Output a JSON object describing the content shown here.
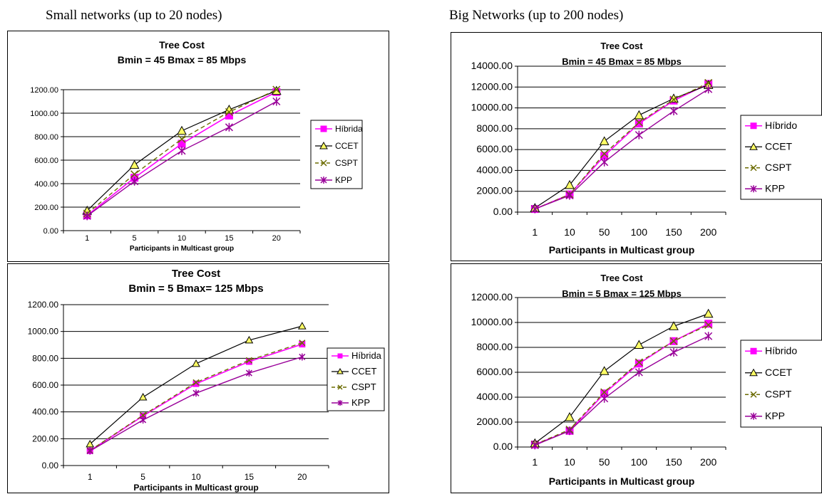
{
  "headings": {
    "left": "Small networks (up to 20 nodes)",
    "right": "Big Networks (up to 200 nodes)"
  },
  "colors": {
    "hibrida": "#ff00ff",
    "ccet": "#000000",
    "cspt": "#6b6b00",
    "kpp": "#990099",
    "ccet_marker_fill": "#ffff66"
  },
  "chart_data": [
    {
      "type": "line",
      "title": "Tree Cost",
      "subtitle": "Bmin = 45 Bmax = 85 Mbps",
      "xlabel": "Participants in Multicast group",
      "ylabel": "",
      "categories": [
        "1",
        "5",
        "10",
        "15",
        "20"
      ],
      "ylim": [
        0,
        1200
      ],
      "yticks": [
        "0.00",
        "200.00",
        "400.00",
        "600.00",
        "800.00",
        "1000.00",
        "1200.00"
      ],
      "grid": true,
      "legend": "right",
      "series": [
        {
          "name": "Híbrida",
          "values": [
            130,
            450,
            740,
            980,
            1180
          ]
        },
        {
          "name": "CCET",
          "values": [
            170,
            560,
            850,
            1030,
            1190
          ]
        },
        {
          "name": "CSPT",
          "values": [
            145,
            480,
            780,
            1010,
            1200
          ]
        },
        {
          "name": "KPP",
          "values": [
            125,
            420,
            680,
            880,
            1100
          ]
        }
      ]
    },
    {
      "type": "line",
      "title": "Tree Cost",
      "subtitle": "Bmin = 5 Bmax= 125 Mbps",
      "xlabel": "Participants in Multicast group",
      "ylabel": "",
      "categories": [
        "1",
        "5",
        "10",
        "15",
        "20"
      ],
      "ylim": [
        0,
        1200
      ],
      "yticks": [
        "0.00",
        "200.00",
        "400.00",
        "600.00",
        "800.00",
        "1000.00",
        "1200.00"
      ],
      "grid": true,
      "legend": "right",
      "series": [
        {
          "name": "Híbrida",
          "values": [
            110,
            370,
            610,
            775,
            905
          ]
        },
        {
          "name": "CCET",
          "values": [
            160,
            510,
            760,
            935,
            1040
          ]
        },
        {
          "name": "CSPT",
          "values": [
            112,
            375,
            620,
            785,
            915
          ]
        },
        {
          "name": "KPP",
          "values": [
            108,
            340,
            540,
            690,
            810
          ]
        }
      ]
    },
    {
      "type": "line",
      "title": "Tree Cost",
      "subtitle": "Bmin = 45 Bmax = 85 Mbps",
      "xlabel": "Participants in Multicast group",
      "ylabel": "",
      "categories": [
        "1",
        "10",
        "50",
        "100",
        "150",
        "200"
      ],
      "ylim": [
        0,
        14000
      ],
      "yticks": [
        "0.00",
        "2000.00",
        "4000.00",
        "6000.00",
        "8000.00",
        "10000.00",
        "12000.00",
        "14000.00"
      ],
      "grid": true,
      "legend": "right",
      "series": [
        {
          "name": "Híbrido",
          "values": [
            300,
            1700,
            5400,
            8500,
            10700,
            12300
          ]
        },
        {
          "name": "CCET",
          "values": [
            400,
            2600,
            6800,
            9300,
            10900,
            12200
          ]
        },
        {
          "name": "CSPT",
          "values": [
            300,
            1700,
            5600,
            8600,
            10800,
            12400
          ]
        },
        {
          "name": "KPP",
          "values": [
            300,
            1600,
            4800,
            7400,
            9700,
            11800
          ]
        }
      ]
    },
    {
      "type": "line",
      "title": "Tree Cost",
      "subtitle": "Bmin = 5 Bmax = 125 Mbps",
      "xlabel": "Participants in Multicast group",
      "ylabel": "",
      "categories": [
        "1",
        "10",
        "50",
        "100",
        "150",
        "200"
      ],
      "ylim": [
        0,
        12000
      ],
      "yticks": [
        "0.00",
        "2000.00",
        "4000.00",
        "6000.00",
        "8000.00",
        "10000.00",
        "12000.00"
      ],
      "grid": true,
      "legend": "right",
      "series": [
        {
          "name": "Híbrido",
          "values": [
            200,
            1300,
            4300,
            6700,
            8500,
            9900
          ]
        },
        {
          "name": "CCET",
          "values": [
            300,
            2400,
            6100,
            8200,
            9700,
            10700
          ]
        },
        {
          "name": "CSPT",
          "values": [
            200,
            1400,
            4400,
            6800,
            8500,
            9800
          ]
        },
        {
          "name": "KPP",
          "values": [
            150,
            1300,
            3900,
            6000,
            7600,
            8900
          ]
        }
      ]
    }
  ]
}
